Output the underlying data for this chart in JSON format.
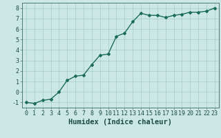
{
  "x": [
    0,
    1,
    2,
    3,
    4,
    5,
    6,
    7,
    8,
    9,
    10,
    11,
    12,
    13,
    14,
    15,
    16,
    17,
    18,
    19,
    20,
    21,
    22,
    23
  ],
  "y": [
    -1.0,
    -1.1,
    -0.8,
    -0.7,
    0.0,
    1.1,
    1.5,
    1.6,
    2.6,
    3.5,
    3.6,
    5.3,
    5.6,
    6.7,
    7.5,
    7.3,
    7.3,
    7.1,
    7.3,
    7.4,
    7.6,
    7.6,
    7.7,
    8.0
  ],
  "line_color": "#1a6b5a",
  "marker": "D",
  "marker_size": 2,
  "bg_color": "#cce8e4",
  "grid_color": "#aacfcb",
  "xlabel": "Humidex (Indice chaleur)",
  "xlabel_fontsize": 7.5,
  "xlim": [
    -0.5,
    23.5
  ],
  "ylim": [
    -1.5,
    8.5
  ],
  "yticks": [
    -1,
    0,
    1,
    2,
    3,
    4,
    5,
    6,
    7,
    8
  ],
  "xticks": [
    0,
    1,
    2,
    3,
    4,
    5,
    6,
    7,
    8,
    9,
    10,
    11,
    12,
    13,
    14,
    15,
    16,
    17,
    18,
    19,
    20,
    21,
    22,
    23
  ],
  "tick_fontsize": 6,
  "line_width": 1.0
}
